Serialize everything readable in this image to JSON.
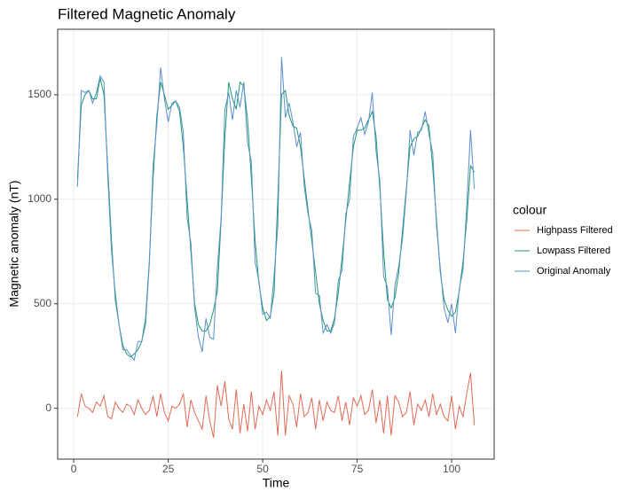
{
  "chart_data": {
    "type": "line",
    "title": "Filtered Magnetic Anomaly",
    "xlabel": "Time",
    "ylabel": "Magnetic anomaly (nT)",
    "legend_title": "colour",
    "x": [
      1,
      2,
      3,
      4,
      5,
      6,
      7,
      8,
      9,
      10,
      11,
      12,
      13,
      14,
      15,
      16,
      17,
      18,
      19,
      20,
      21,
      22,
      23,
      24,
      25,
      26,
      27,
      28,
      29,
      30,
      31,
      32,
      33,
      34,
      35,
      36,
      37,
      38,
      39,
      40,
      41,
      42,
      43,
      44,
      45,
      46,
      47,
      48,
      49,
      50,
      51,
      52,
      53,
      54,
      55,
      56,
      57,
      58,
      59,
      60,
      61,
      62,
      63,
      64,
      65,
      66,
      67,
      68,
      69,
      70,
      71,
      72,
      73,
      74,
      75,
      76,
      77,
      78,
      79,
      80,
      81,
      82,
      83,
      84,
      85,
      86,
      87,
      88,
      89,
      90,
      91,
      92,
      93,
      94,
      95,
      96,
      97,
      98,
      99,
      100,
      101,
      102,
      103,
      104,
      105,
      106
    ],
    "series": [
      {
        "name": "Highpass Filtered",
        "color": "#e06b55",
        "values": [
          -40,
          70,
          10,
          0,
          -20,
          30,
          10,
          60,
          -40,
          -50,
          30,
          0,
          -20,
          20,
          10,
          -30,
          40,
          0,
          -30,
          -10,
          60,
          -40,
          70,
          -20,
          -60,
          10,
          0,
          20,
          70,
          -90,
          40,
          -20,
          -60,
          -100,
          60,
          -60,
          -140,
          110,
          10,
          130,
          -50,
          -100,
          90,
          -120,
          20,
          -110,
          80,
          -100,
          10,
          -30,
          40,
          -10,
          80,
          -130,
          180,
          -130,
          60,
          20,
          -90,
          70,
          -40,
          -20,
          50,
          -100,
          40,
          -60,
          30,
          -10,
          -20,
          60,
          -60,
          30,
          -80,
          50,
          10,
          60,
          -30,
          -10,
          90,
          -70,
          40,
          -120,
          60,
          -130,
          60,
          30,
          -40,
          -20,
          80,
          -80,
          20,
          -10,
          40,
          -40,
          70,
          -30,
          20,
          -40,
          -60,
          60,
          -100,
          10,
          -40,
          70,
          170,
          -80
        ]
      },
      {
        "name": "Lowpass Filtered",
        "color": "#1a9b6c",
        "values": [
          1100,
          1450,
          1500,
          1520,
          1480,
          1480,
          1580,
          1500,
          1150,
          800,
          520,
          400,
          300,
          260,
          245,
          260,
          280,
          320,
          430,
          700,
          1100,
          1400,
          1560,
          1500,
          1430,
          1450,
          1470,
          1420,
          1250,
          1000,
          750,
          500,
          400,
          370,
          370,
          400,
          470,
          560,
          900,
          1300,
          1560,
          1480,
          1430,
          1560,
          1540,
          1380,
          1100,
          800,
          600,
          480,
          420,
          440,
          550,
          1000,
          1500,
          1520,
          1400,
          1350,
          1340,
          1250,
          1100,
          950,
          800,
          650,
          500,
          420,
          370,
          370,
          430,
          550,
          720,
          900,
          1080,
          1250,
          1330,
          1330,
          1340,
          1380,
          1420,
          1300,
          1050,
          750,
          520,
          480,
          530,
          650,
          850,
          1050,
          1250,
          1290,
          1300,
          1340,
          1380,
          1350,
          1150,
          900,
          650,
          520,
          470,
          440,
          460,
          560,
          700,
          900,
          1160,
          1130
        ]
      },
      {
        "name": "Original Anomaly",
        "color": "#5b8ecf",
        "values": [
          1060,
          1520,
          1510,
          1520,
          1460,
          1510,
          1590,
          1560,
          1110,
          750,
          550,
          400,
          280,
          280,
          255,
          230,
          320,
          320,
          400,
          690,
          1160,
          1360,
          1630,
          1480,
          1370,
          1460,
          1470,
          1440,
          1320,
          910,
          790,
          480,
          340,
          270,
          430,
          340,
          330,
          670,
          910,
          1430,
          1510,
          1380,
          1520,
          1440,
          1560,
          1270,
          1180,
          700,
          610,
          450,
          460,
          430,
          630,
          870,
          1680,
          1390,
          1460,
          1370,
          1250,
          1320,
          1060,
          930,
          850,
          550,
          540,
          360,
          400,
          360,
          410,
          610,
          660,
          930,
          1000,
          1300,
          1340,
          1390,
          1310,
          1370,
          1510,
          1230,
          1090,
          630,
          580,
          350,
          590,
          680,
          810,
          1030,
          1330,
          1210,
          1320,
          1330,
          1420,
          1310,
          1220,
          870,
          670,
          480,
          410,
          500,
          360,
          570,
          660,
          970,
          1330,
          1050
        ]
      }
    ],
    "xlim": [
      -4.25,
      111.25
    ],
    "xticks": [
      0,
      25,
      50,
      75,
      100
    ],
    "ylim": [
      -243,
      1813
    ],
    "yticks": [
      0,
      500,
      1000,
      1500
    ],
    "grid": true,
    "legend": "right"
  }
}
